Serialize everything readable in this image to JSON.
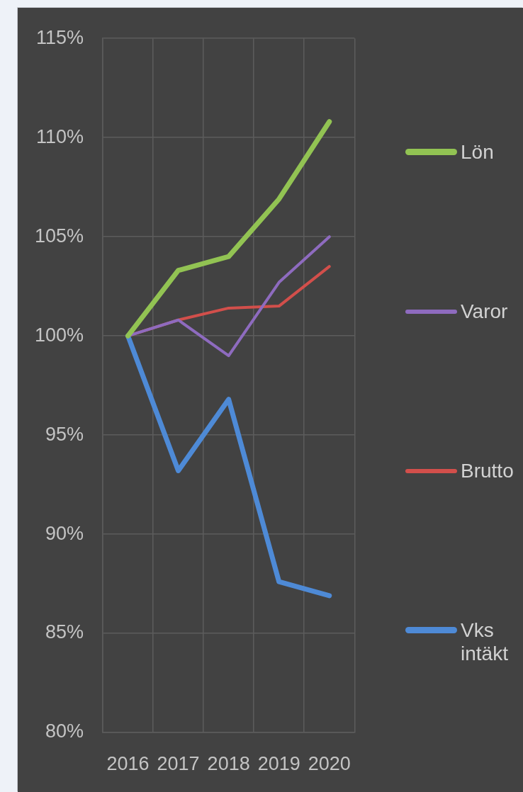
{
  "chart_data": {
    "type": "line",
    "categories": [
      "2016",
      "2017",
      "2018",
      "2019",
      "2020"
    ],
    "series": [
      {
        "name": "Lön",
        "color": "#92c353",
        "values": [
          100,
          103.3,
          104.0,
          106.9,
          110.8
        ]
      },
      {
        "name": "Varor",
        "color": "#8e6bbf",
        "values": [
          100,
          100.8,
          99.0,
          102.7,
          105.0
        ]
      },
      {
        "name": "Brutto",
        "color": "#d24f4b",
        "values": [
          100,
          100.8,
          101.4,
          101.5,
          103.5
        ]
      },
      {
        "name": "Vks intäkt",
        "color": "#4e8ad6",
        "values": [
          100,
          93.2,
          96.8,
          87.6,
          86.9
        ]
      }
    ],
    "ylim": [
      80,
      115
    ],
    "yticks": [
      {
        "value": 80,
        "label": "80%"
      },
      {
        "value": 85,
        "label": "85%"
      },
      {
        "value": 90,
        "label": "90%"
      },
      {
        "value": 95,
        "label": "95%"
      },
      {
        "value": 100,
        "label": "100%"
      },
      {
        "value": 105,
        "label": "105%"
      },
      {
        "value": 110,
        "label": "110%"
      },
      {
        "value": 115,
        "label": "115%"
      }
    ],
    "grid": true,
    "legend": "right"
  }
}
